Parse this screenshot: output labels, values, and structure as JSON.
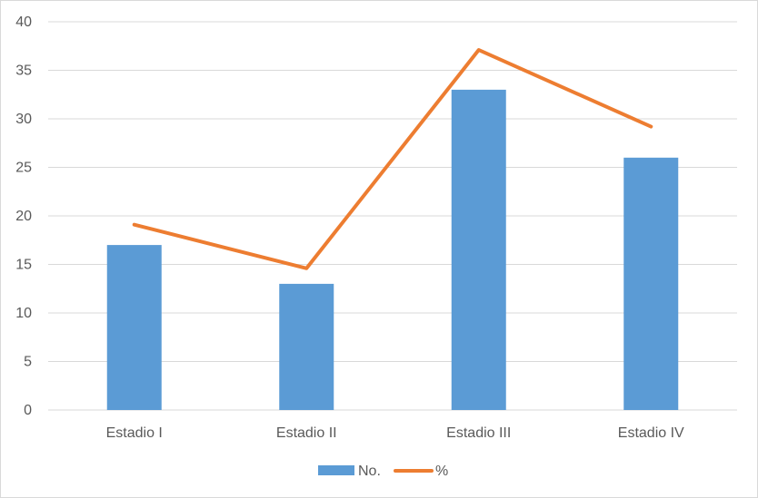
{
  "chart_data": {
    "type": "bar",
    "title": "",
    "xlabel": "",
    "ylabel": "",
    "categories": [
      "Estadio I",
      "Estadio II",
      "Estadio III",
      "Estadio IV"
    ],
    "ylim": [
      0,
      40
    ],
    "yticks": [
      0,
      5,
      10,
      15,
      20,
      25,
      30,
      35,
      40
    ],
    "grid": true,
    "legend_position": "bottom",
    "series": [
      {
        "name": "No.",
        "type": "bar",
        "color": "#5b9bd5",
        "values": [
          17,
          13,
          33,
          26
        ]
      },
      {
        "name": "%",
        "type": "line",
        "color": "#ed7d31",
        "values": [
          19.1,
          14.6,
          37.1,
          29.2
        ]
      }
    ]
  }
}
